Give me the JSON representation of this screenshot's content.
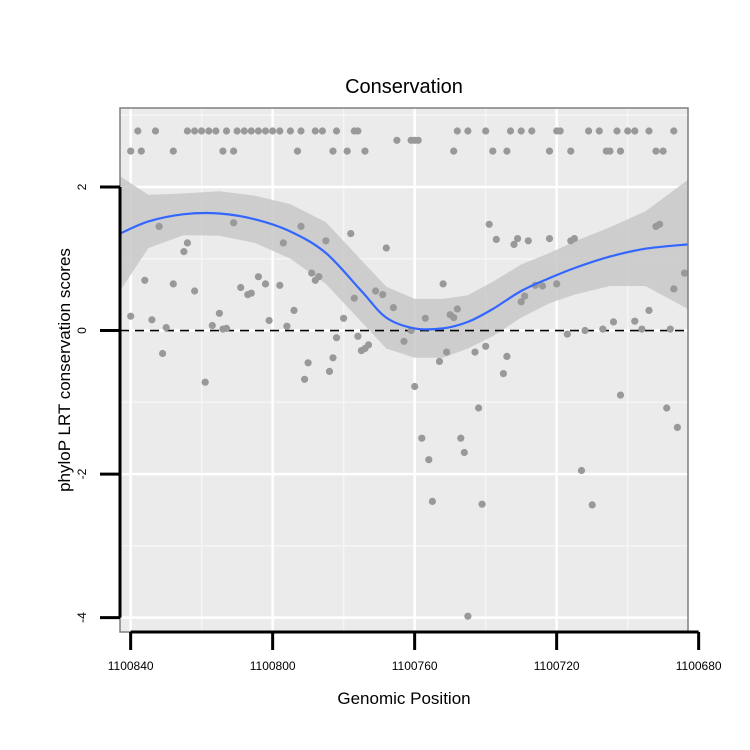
{
  "chart_data": {
    "type": "scatter",
    "title": "Conservation",
    "xlabel": "Genomic Position",
    "ylabel": "phyloP LRT conservation scores",
    "x_reversed": true,
    "xlim": [
      1100843,
      1100683
    ],
    "ylim": [
      -4.2,
      3.1
    ],
    "x_ticks": [
      1100840,
      1100800,
      1100760,
      1100720,
      1100680
    ],
    "x_tick_labels": [
      "1100840",
      "1100800",
      "1100760",
      "1100720",
      "1100680"
    ],
    "y_ticks": [
      -4,
      -2,
      0,
      2
    ],
    "y_tick_labels": [
      "-4",
      "-2",
      "0",
      "2"
    ],
    "grid": true,
    "background": "#ebebeb",
    "point_color": "#999999",
    "smooth_color": "#3366ff",
    "ribbon_color": "#c8c8c8",
    "reference_line": {
      "y": 0,
      "style": "dashed",
      "color": "#000000"
    },
    "points": [
      [
        1100840,
        2.5
      ],
      [
        1100838,
        2.78
      ],
      [
        1100837,
        2.5
      ],
      [
        1100833,
        2.78
      ],
      [
        1100828,
        2.5
      ],
      [
        1100824,
        2.78
      ],
      [
        1100822,
        2.78
      ],
      [
        1100820,
        2.78
      ],
      [
        1100818,
        2.78
      ],
      [
        1100816,
        2.78
      ],
      [
        1100814,
        2.5
      ],
      [
        1100813,
        2.78
      ],
      [
        1100811,
        2.5
      ],
      [
        1100810,
        2.78
      ],
      [
        1100808,
        2.78
      ],
      [
        1100806,
        2.78
      ],
      [
        1100804,
        2.78
      ],
      [
        1100802,
        2.78
      ],
      [
        1100800,
        2.78
      ],
      [
        1100798,
        2.78
      ],
      [
        1100795,
        2.78
      ],
      [
        1100793,
        2.5
      ],
      [
        1100792,
        2.78
      ],
      [
        1100788,
        2.78
      ],
      [
        1100786,
        2.78
      ],
      [
        1100783,
        2.5
      ],
      [
        1100782,
        2.78
      ],
      [
        1100779,
        2.5
      ],
      [
        1100777,
        2.78
      ],
      [
        1100776,
        2.78
      ],
      [
        1100774,
        2.5
      ],
      [
        1100765,
        2.65
      ],
      [
        1100761,
        2.65
      ],
      [
        1100760,
        2.65
      ],
      [
        1100759,
        2.65
      ],
      [
        1100749,
        2.5
      ],
      [
        1100748,
        2.78
      ],
      [
        1100745,
        2.78
      ],
      [
        1100740,
        2.78
      ],
      [
        1100738,
        2.5
      ],
      [
        1100734,
        2.5
      ],
      [
        1100733,
        2.78
      ],
      [
        1100730,
        2.78
      ],
      [
        1100727,
        2.78
      ],
      [
        1100722,
        2.5
      ],
      [
        1100720,
        2.78
      ],
      [
        1100719,
        2.78
      ],
      [
        1100716,
        2.5
      ],
      [
        1100711,
        2.78
      ],
      [
        1100708,
        2.78
      ],
      [
        1100706,
        2.5
      ],
      [
        1100705,
        2.5
      ],
      [
        1100703,
        2.78
      ],
      [
        1100702,
        2.5
      ],
      [
        1100700,
        2.78
      ],
      [
        1100698,
        2.78
      ],
      [
        1100694,
        2.78
      ],
      [
        1100692,
        2.5
      ],
      [
        1100690,
        2.5
      ],
      [
        1100687,
        2.78
      ],
      [
        1100840,
        0.2
      ],
      [
        1100836,
        0.7
      ],
      [
        1100834,
        0.15
      ],
      [
        1100832,
        1.45
      ],
      [
        1100831,
        -0.32
      ],
      [
        1100830,
        0.04
      ],
      [
        1100828,
        0.65
      ],
      [
        1100825,
        1.1
      ],
      [
        1100824,
        1.22
      ],
      [
        1100822,
        0.55
      ],
      [
        1100819,
        -0.72
      ],
      [
        1100817,
        0.07
      ],
      [
        1100815,
        0.24
      ],
      [
        1100814,
        0.02
      ],
      [
        1100813,
        0.03
      ],
      [
        1100811,
        1.5
      ],
      [
        1100809,
        0.6
      ],
      [
        1100807,
        0.5
      ],
      [
        1100806,
        0.52
      ],
      [
        1100804,
        0.75
      ],
      [
        1100802,
        0.65
      ],
      [
        1100801,
        0.14
      ],
      [
        1100798,
        0.63
      ],
      [
        1100797,
        1.22
      ],
      [
        1100796,
        0.06
      ],
      [
        1100794,
        0.28
      ],
      [
        1100792,
        1.45
      ],
      [
        1100791,
        -0.68
      ],
      [
        1100790,
        -0.45
      ],
      [
        1100789,
        0.8
      ],
      [
        1100788,
        0.7
      ],
      [
        1100787,
        0.75
      ],
      [
        1100785,
        1.25
      ],
      [
        1100784,
        -0.57
      ],
      [
        1100783,
        -0.38
      ],
      [
        1100782,
        -0.1
      ],
      [
        1100780,
        0.17
      ],
      [
        1100778,
        1.35
      ],
      [
        1100777,
        0.45
      ],
      [
        1100776,
        -0.08
      ],
      [
        1100775,
        -0.28
      ],
      [
        1100774,
        -0.25
      ],
      [
        1100773,
        -0.2
      ],
      [
        1100771,
        0.55
      ],
      [
        1100769,
        0.5
      ],
      [
        1100768,
        1.15
      ],
      [
        1100766,
        0.32
      ],
      [
        1100763,
        -0.15
      ],
      [
        1100761,
        0.0
      ],
      [
        1100760,
        -0.78
      ],
      [
        1100758,
        -1.5
      ],
      [
        1100757,
        0.17
      ],
      [
        1100756,
        -1.8
      ],
      [
        1100755,
        -2.38
      ],
      [
        1100753,
        -0.43
      ],
      [
        1100752,
        0.65
      ],
      [
        1100751,
        -0.3
      ],
      [
        1100750,
        0.22
      ],
      [
        1100749,
        0.18
      ],
      [
        1100748,
        0.3
      ],
      [
        1100747,
        -1.5
      ],
      [
        1100746,
        -1.7
      ],
      [
        1100745,
        -3.98
      ],
      [
        1100743,
        -0.3
      ],
      [
        1100742,
        -1.08
      ],
      [
        1100741,
        -2.42
      ],
      [
        1100740,
        -0.22
      ],
      [
        1100739,
        1.48
      ],
      [
        1100737,
        1.27
      ],
      [
        1100735,
        -0.6
      ],
      [
        1100734,
        -0.36
      ],
      [
        1100732,
        1.2
      ],
      [
        1100731,
        1.28
      ],
      [
        1100730,
        0.4
      ],
      [
        1100729,
        0.48
      ],
      [
        1100728,
        1.25
      ],
      [
        1100726,
        0.63
      ],
      [
        1100724,
        0.62
      ],
      [
        1100722,
        1.28
      ],
      [
        1100720,
        0.65
      ],
      [
        1100717,
        -0.05
      ],
      [
        1100716,
        1.25
      ],
      [
        1100715,
        1.28
      ],
      [
        1100713,
        -1.95
      ],
      [
        1100712,
        0.0
      ],
      [
        1100710,
        -2.43
      ],
      [
        1100707,
        0.02
      ],
      [
        1100704,
        0.12
      ],
      [
        1100702,
        -0.9
      ],
      [
        1100698,
        0.13
      ],
      [
        1100696,
        0.02
      ],
      [
        1100694,
        0.28
      ],
      [
        1100692,
        1.45
      ],
      [
        1100691,
        1.48
      ],
      [
        1100689,
        -1.08
      ],
      [
        1100688,
        0.02
      ],
      [
        1100687,
        0.58
      ],
      [
        1100686,
        -1.35
      ],
      [
        1100684,
        0.8
      ]
    ],
    "smooth": {
      "x": [
        1100843,
        1100835,
        1100825,
        1100815,
        1100805,
        1100795,
        1100785,
        1100775,
        1100768,
        1100760,
        1100752,
        1100745,
        1100738,
        1100730,
        1100722,
        1100715,
        1100705,
        1100695,
        1100683
      ],
      "y": [
        1.35,
        1.52,
        1.62,
        1.63,
        1.55,
        1.38,
        1.08,
        0.55,
        0.18,
        0.03,
        0.03,
        0.12,
        0.3,
        0.55,
        0.73,
        0.87,
        1.03,
        1.14,
        1.2
      ],
      "lower": [
        0.55,
        1.15,
        1.33,
        1.32,
        1.22,
        1.0,
        0.65,
        0.12,
        -0.25,
        -0.38,
        -0.38,
        -0.25,
        -0.08,
        0.18,
        0.38,
        0.5,
        0.62,
        0.62,
        0.3
      ],
      "upper": [
        2.15,
        1.89,
        1.91,
        1.94,
        1.88,
        1.76,
        1.51,
        0.98,
        0.61,
        0.44,
        0.44,
        0.49,
        0.68,
        0.92,
        1.08,
        1.24,
        1.44,
        1.66,
        2.1
      ]
    }
  }
}
